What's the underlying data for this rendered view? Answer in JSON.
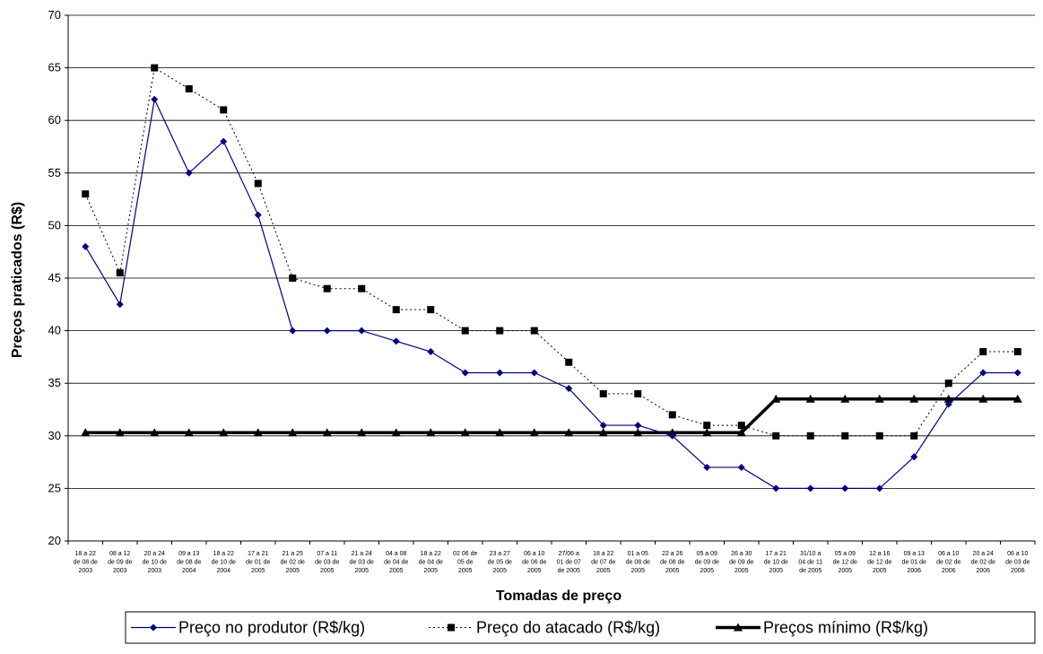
{
  "chart_data": {
    "type": "line",
    "ylabel": "Preços praticados (R$)",
    "xlabel": "Tomadas de preço",
    "ylim": [
      20,
      70
    ],
    "yticks": [
      20,
      25,
      30,
      35,
      40,
      45,
      50,
      55,
      60,
      65,
      70
    ],
    "grid": "horizontal",
    "legend_position": "bottom",
    "categories": [
      [
        "18 a 22",
        "de 08 de",
        "2003"
      ],
      [
        "08 a 12",
        "de 09 de",
        "2003"
      ],
      [
        "20 a 24",
        "de 10 de",
        "2003"
      ],
      [
        "09 a 13",
        "de 08 de",
        "2004"
      ],
      [
        "18 a 22",
        "de 10 de",
        "2004"
      ],
      [
        "17 a 21",
        "de 01 de",
        "2005"
      ],
      [
        "21 a 25",
        "de 02 de",
        "2005"
      ],
      [
        "07 a 11",
        "de 03 de",
        "2005"
      ],
      [
        "21 a 24",
        "de 03 de",
        "2005"
      ],
      [
        "04 a 08",
        "de 04 de",
        "2005"
      ],
      [
        "18 a 22",
        "de 04 de",
        "2005"
      ],
      [
        "02 06 de",
        "05 de",
        "2005"
      ],
      [
        "23 a 27",
        "de 05 de",
        "2005"
      ],
      [
        "06 a 10",
        "de 06 de",
        "2005"
      ],
      [
        "27/06 a",
        "01 de 07",
        "de 2005"
      ],
      [
        "18 a 22",
        "de 07 de",
        "2005"
      ],
      [
        "01 a 05",
        "de 08 de",
        "2005"
      ],
      [
        "22 a 26",
        "de 08 de",
        "2005"
      ],
      [
        "05 a 09",
        "de 09 de",
        "2005"
      ],
      [
        "26 a 30",
        "de 09 de",
        "2005"
      ],
      [
        "17 a 21",
        "de 10 de",
        "2005"
      ],
      [
        "31/10 a",
        "04 de 11",
        "de 2005"
      ],
      [
        "05 a 09",
        "de 12 de",
        "2005"
      ],
      [
        "12 a 16",
        "de 12 de",
        "2005"
      ],
      [
        "09 a 13",
        "de 01 de",
        "2006"
      ],
      [
        "06 a 10",
        "de 02 de",
        "2006"
      ],
      [
        "20 a 24",
        "de 02 de",
        "2006"
      ],
      [
        "06 a 10",
        "de 03 de",
        "2006"
      ]
    ],
    "series": [
      {
        "name": "Preço no produtor (R$/kg)",
        "color": "#000080",
        "style": "solid",
        "marker": "diamond",
        "values": [
          48,
          42.5,
          62,
          55,
          58,
          51,
          40,
          40,
          40,
          39,
          38,
          36,
          36,
          36,
          34.5,
          31,
          31,
          30,
          27,
          27,
          25,
          25,
          25,
          25,
          28,
          33,
          36,
          36
        ]
      },
      {
        "name": "Preço do atacado (R$/kg)",
        "color": "#000000",
        "style": "dotted",
        "marker": "square",
        "values": [
          53,
          45.5,
          65,
          63,
          61,
          54,
          45,
          44,
          44,
          42,
          42,
          40,
          40,
          40,
          37,
          34,
          34,
          32,
          31,
          31,
          30,
          30,
          30,
          30,
          30,
          35,
          38,
          38
        ]
      },
      {
        "name": "Preços mínimo (R$/kg)",
        "color": "#000000",
        "style": "bold",
        "marker": "triangle",
        "values": [
          30.3,
          30.3,
          30.3,
          30.3,
          30.3,
          30.3,
          30.3,
          30.3,
          30.3,
          30.3,
          30.3,
          30.3,
          30.3,
          30.3,
          30.3,
          30.3,
          30.3,
          30.3,
          30.3,
          30.3,
          33.5,
          33.5,
          33.5,
          33.5,
          33.5,
          33.5,
          33.5,
          33.5
        ]
      }
    ]
  }
}
